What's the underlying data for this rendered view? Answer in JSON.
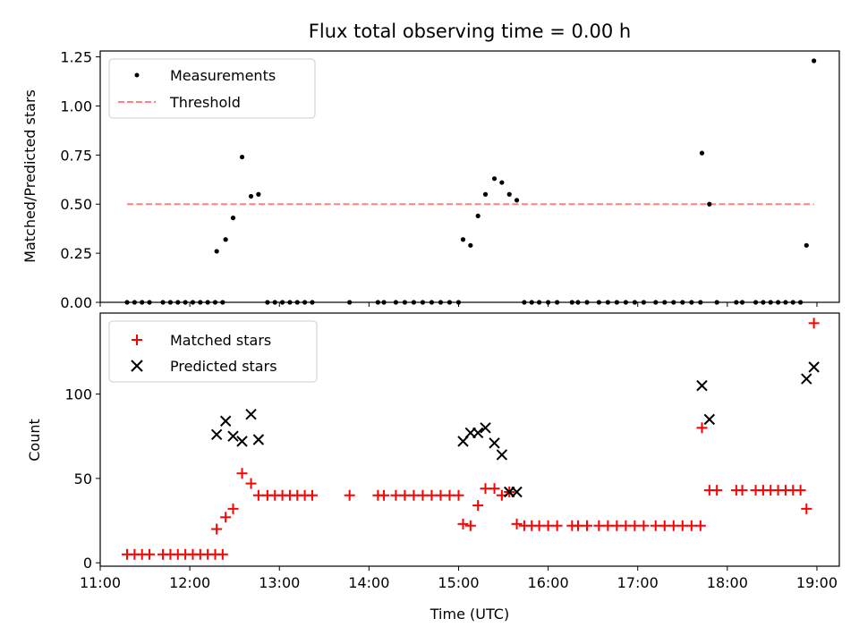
{
  "chart_data": [
    {
      "type": "scatter",
      "title": "Flux total observing time = 0.00 h",
      "xlabel": "",
      "ylabel": "Matched/Predicted stars",
      "xlim": [
        "11:00",
        "19:15"
      ],
      "ylim": [
        0,
        1.28
      ],
      "yticks": [
        "0.00",
        "0.25",
        "0.50",
        "0.75",
        "1.00",
        "1.25"
      ],
      "yticks_values": [
        0,
        0.25,
        0.5,
        0.75,
        1.0,
        1.25
      ],
      "legend_position": "top-left",
      "series": [
        {
          "name": "Measurements",
          "marker": "dot",
          "color": "#000000",
          "points": [
            [
              "11:18",
              0
            ],
            [
              "11:23",
              0
            ],
            [
              "11:28",
              0
            ],
            [
              "11:33",
              0
            ],
            [
              "11:42",
              0
            ],
            [
              "11:47",
              0
            ],
            [
              "11:52",
              0
            ],
            [
              "11:57",
              0
            ],
            [
              "12:02",
              0
            ],
            [
              "12:07",
              0
            ],
            [
              "12:12",
              0
            ],
            [
              "12:17",
              0
            ],
            [
              "12:22",
              0
            ],
            [
              "12:18",
              0.26
            ],
            [
              "12:24",
              0.32
            ],
            [
              "12:29",
              0.43
            ],
            [
              "12:35",
              0.74
            ],
            [
              "12:41",
              0.54
            ],
            [
              "12:46",
              0.55
            ],
            [
              "12:52",
              0
            ],
            [
              "12:57",
              0
            ],
            [
              "13:02",
              0
            ],
            [
              "13:07",
              0
            ],
            [
              "13:12",
              0
            ],
            [
              "13:17",
              0
            ],
            [
              "13:22",
              0
            ],
            [
              "13:47",
              0
            ],
            [
              "14:06",
              0
            ],
            [
              "14:10",
              0
            ],
            [
              "14:18",
              0
            ],
            [
              "14:24",
              0
            ],
            [
              "14:30",
              0
            ],
            [
              "14:36",
              0
            ],
            [
              "14:42",
              0
            ],
            [
              "14:48",
              0
            ],
            [
              "14:54",
              0
            ],
            [
              "15:00",
              0
            ],
            [
              "15:03",
              0.32
            ],
            [
              "15:08",
              0.29
            ],
            [
              "15:13",
              0.44
            ],
            [
              "15:18",
              0.55
            ],
            [
              "15:24",
              0.63
            ],
            [
              "15:29",
              0.61
            ],
            [
              "15:34",
              0.55
            ],
            [
              "15:39",
              0.52
            ],
            [
              "15:44",
              0
            ],
            [
              "15:49",
              0
            ],
            [
              "15:54",
              0
            ],
            [
              "16:00",
              0
            ],
            [
              "16:06",
              0
            ],
            [
              "16:16",
              0
            ],
            [
              "16:20",
              0
            ],
            [
              "16:26",
              0
            ],
            [
              "16:34",
              0
            ],
            [
              "16:40",
              0
            ],
            [
              "16:46",
              0
            ],
            [
              "16:52",
              0
            ],
            [
              "16:58",
              0
            ],
            [
              "17:04",
              0
            ],
            [
              "17:12",
              0
            ],
            [
              "17:18",
              0
            ],
            [
              "17:24",
              0
            ],
            [
              "17:30",
              0
            ],
            [
              "17:36",
              0
            ],
            [
              "17:42",
              0
            ],
            [
              "17:43",
              0.76
            ],
            [
              "17:48",
              0.5
            ],
            [
              "17:53",
              0
            ],
            [
              "18:06",
              0
            ],
            [
              "18:10",
              0
            ],
            [
              "18:19",
              0
            ],
            [
              "18:24",
              0
            ],
            [
              "18:29",
              0
            ],
            [
              "18:34",
              0
            ],
            [
              "18:39",
              0
            ],
            [
              "18:44",
              0
            ],
            [
              "18:49",
              0
            ],
            [
              "18:53",
              0.29
            ],
            [
              "18:58",
              1.23
            ]
          ]
        },
        {
          "name": "Threshold",
          "marker": "dashed-line",
          "color": "#ff8080",
          "points": [
            [
              "11:18",
              0.5
            ],
            [
              "18:58",
              0.5
            ]
          ]
        }
      ]
    },
    {
      "type": "scatter",
      "title": "",
      "xlabel": "Time (UTC)",
      "ylabel": "Count",
      "xlim": [
        "11:00",
        "19:15"
      ],
      "xticks": [
        "11:00",
        "12:00",
        "13:00",
        "14:00",
        "15:00",
        "16:00",
        "17:00",
        "18:00",
        "19:00"
      ],
      "ylim": [
        -2,
        148
      ],
      "yticks": [
        "0",
        "50",
        "100"
      ],
      "yticks_values": [
        0,
        50,
        100
      ],
      "legend_position": "top-left",
      "series": [
        {
          "name": "Matched stars",
          "marker": "plus",
          "color": "#ff0000",
          "points": [
            [
              "11:18",
              5
            ],
            [
              "11:23",
              5
            ],
            [
              "11:28",
              5
            ],
            [
              "11:33",
              5
            ],
            [
              "11:42",
              5
            ],
            [
              "11:47",
              5
            ],
            [
              "11:52",
              5
            ],
            [
              "11:57",
              5
            ],
            [
              "12:02",
              5
            ],
            [
              "12:07",
              5
            ],
            [
              "12:12",
              5
            ],
            [
              "12:17",
              5
            ],
            [
              "12:22",
              5
            ],
            [
              "12:18",
              20
            ],
            [
              "12:24",
              27
            ],
            [
              "12:29",
              32
            ],
            [
              "12:35",
              53
            ],
            [
              "12:41",
              47
            ],
            [
              "12:46",
              40
            ],
            [
              "12:52",
              40
            ],
            [
              "12:57",
              40
            ],
            [
              "13:02",
              40
            ],
            [
              "13:07",
              40
            ],
            [
              "13:12",
              40
            ],
            [
              "13:17",
              40
            ],
            [
              "13:22",
              40
            ],
            [
              "13:47",
              40
            ],
            [
              "14:06",
              40
            ],
            [
              "14:10",
              40
            ],
            [
              "14:18",
              40
            ],
            [
              "14:24",
              40
            ],
            [
              "14:30",
              40
            ],
            [
              "14:36",
              40
            ],
            [
              "14:42",
              40
            ],
            [
              "14:48",
              40
            ],
            [
              "14:54",
              40
            ],
            [
              "15:00",
              40
            ],
            [
              "15:03",
              23
            ],
            [
              "15:08",
              22
            ],
            [
              "15:13",
              34
            ],
            [
              "15:18",
              44
            ],
            [
              "15:24",
              44
            ],
            [
              "15:29",
              40
            ],
            [
              "15:34",
              42
            ],
            [
              "15:39",
              23
            ],
            [
              "15:44",
              22
            ],
            [
              "15:49",
              22
            ],
            [
              "15:54",
              22
            ],
            [
              "16:00",
              22
            ],
            [
              "16:06",
              22
            ],
            [
              "16:16",
              22
            ],
            [
              "16:20",
              22
            ],
            [
              "16:26",
              22
            ],
            [
              "16:34",
              22
            ],
            [
              "16:40",
              22
            ],
            [
              "16:46",
              22
            ],
            [
              "16:52",
              22
            ],
            [
              "16:58",
              22
            ],
            [
              "17:04",
              22
            ],
            [
              "17:12",
              22
            ],
            [
              "17:18",
              22
            ],
            [
              "17:24",
              22
            ],
            [
              "17:30",
              22
            ],
            [
              "17:36",
              22
            ],
            [
              "17:42",
              22
            ],
            [
              "17:43",
              80
            ],
            [
              "17:48",
              43
            ],
            [
              "17:53",
              43
            ],
            [
              "18:06",
              43
            ],
            [
              "18:10",
              43
            ],
            [
              "18:19",
              43
            ],
            [
              "18:24",
              43
            ],
            [
              "18:29",
              43
            ],
            [
              "18:34",
              43
            ],
            [
              "18:39",
              43
            ],
            [
              "18:44",
              43
            ],
            [
              "18:49",
              43
            ],
            [
              "18:53",
              32
            ],
            [
              "18:58",
              142
            ]
          ]
        },
        {
          "name": "Predicted stars",
          "marker": "x",
          "color": "#000000",
          "points": [
            [
              "12:18",
              76
            ],
            [
              "12:24",
              84
            ],
            [
              "12:29",
              75
            ],
            [
              "12:35",
              72
            ],
            [
              "12:41",
              88
            ],
            [
              "12:46",
              73
            ],
            [
              "15:03",
              72
            ],
            [
              "15:08",
              77
            ],
            [
              "15:13",
              77
            ],
            [
              "15:18",
              80
            ],
            [
              "15:24",
              71
            ],
            [
              "15:29",
              64
            ],
            [
              "15:34",
              42
            ],
            [
              "15:39",
              42
            ],
            [
              "17:43",
              105
            ],
            [
              "17:48",
              85
            ],
            [
              "18:53",
              109
            ],
            [
              "18:58",
              116
            ]
          ]
        }
      ]
    }
  ]
}
